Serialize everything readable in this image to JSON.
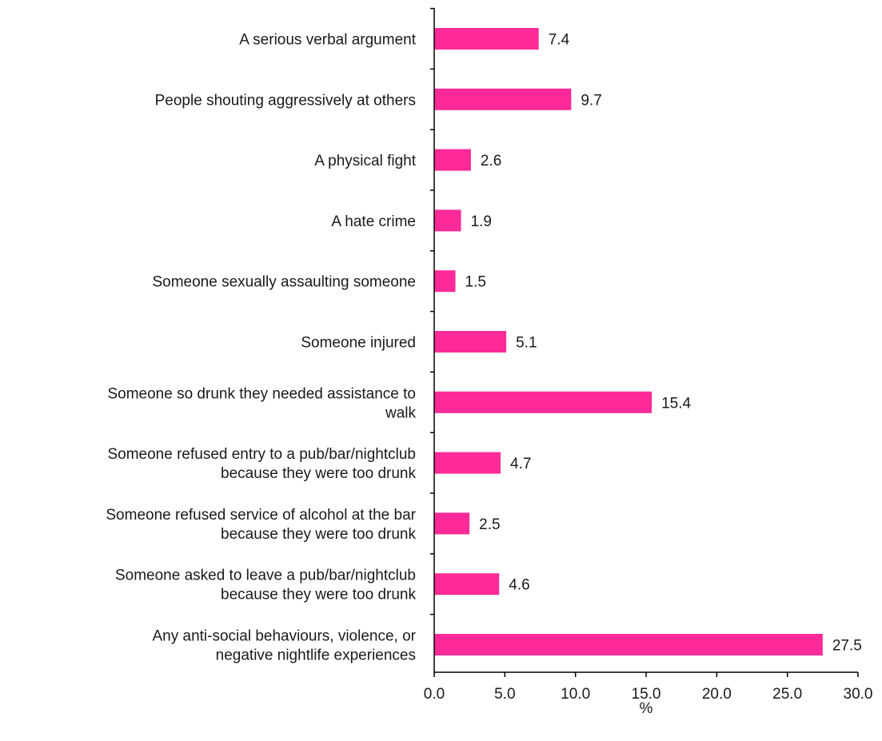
{
  "chart_data": {
    "type": "bar",
    "orientation": "horizontal",
    "categories": [
      [
        "A serious verbal argument"
      ],
      [
        "People shouting aggressively at others"
      ],
      [
        "A physical fight"
      ],
      [
        "A hate crime"
      ],
      [
        "Someone sexually assaulting someone"
      ],
      [
        "Someone injured"
      ],
      [
        "Someone so drunk they needed assistance to",
        "walk"
      ],
      [
        "Someone refused entry to a pub/bar/nightclub",
        "because they were too drunk"
      ],
      [
        "Someone refused service of alcohol at the bar",
        "because they were too drunk"
      ],
      [
        "Someone asked to leave a pub/bar/nightclub",
        "because they were too drunk"
      ],
      [
        "Any anti-social behaviours, violence, or",
        "negative nightlife experiences"
      ]
    ],
    "values": [
      7.4,
      9.7,
      2.6,
      1.9,
      1.5,
      5.1,
      15.4,
      4.7,
      2.5,
      4.6,
      27.5
    ],
    "value_labels": [
      "7.4",
      "9.7",
      "2.6",
      "1.9",
      "1.5",
      "5.1",
      "15.4",
      "4.7",
      "2.5",
      "4.6",
      "27.5"
    ],
    "xlim": [
      0,
      30
    ],
    "x_ticks": [
      0,
      5,
      10,
      15,
      20,
      25,
      30
    ],
    "x_tick_labels": [
      "0.0",
      "5.0",
      "10.0",
      "15.0",
      "20.0",
      "25.0",
      "30.0"
    ],
    "xlabel": "%",
    "bar_color": "#ff2a9a",
    "grid": false,
    "legend": "none"
  }
}
